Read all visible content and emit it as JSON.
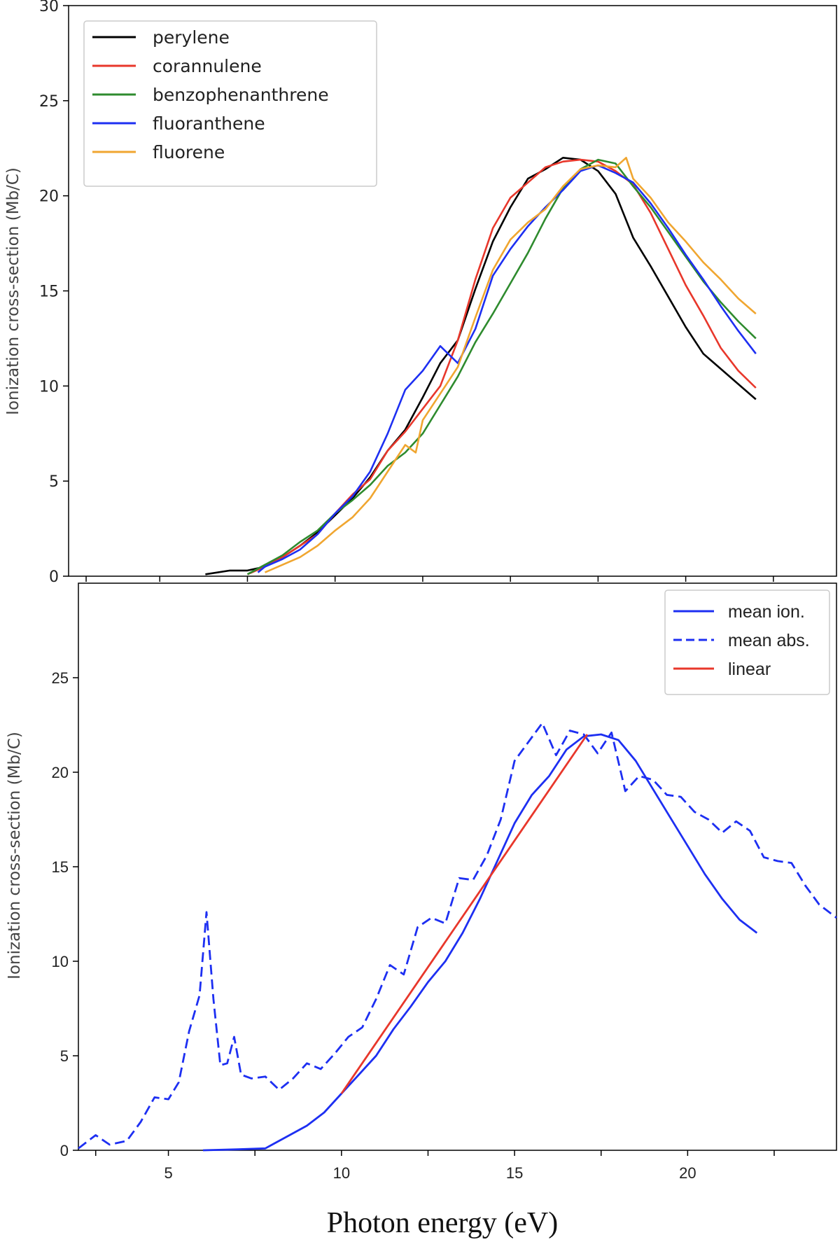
{
  "chart_data": [
    {
      "type": "line",
      "panel": "top",
      "title": "",
      "ylabel": "Ionization cross-section (Mb/C)",
      "xlabel": "",
      "xlim": [
        2.4,
        24.3
      ],
      "ylim": [
        0,
        30
      ],
      "yticks": [
        0,
        5,
        10,
        15,
        20,
        25,
        30
      ],
      "xticks": [
        2.9,
        5,
        7.5,
        10,
        12.5,
        15,
        17.5,
        20,
        22.5
      ],
      "legend_position": "top-left",
      "series": [
        {
          "name": "perylene",
          "color": "#000000",
          "x": [
            6.3,
            7.0,
            7.5,
            8.0,
            8.5,
            9.0,
            9.5,
            10.0,
            10.5,
            11.0,
            11.5,
            12.0,
            12.5,
            13.0,
            13.5,
            14.0,
            14.5,
            15.0,
            15.5,
            16.0,
            16.5,
            17.0,
            17.5,
            18.0,
            18.5,
            19.0,
            19.5,
            20.0,
            20.5,
            21.0,
            21.5,
            22.0
          ],
          "y": [
            0.1,
            0.3,
            0.3,
            0.5,
            1.0,
            1.6,
            2.3,
            3.2,
            4.1,
            5.2,
            6.6,
            7.7,
            9.4,
            11.2,
            12.4,
            15.1,
            17.6,
            19.4,
            20.9,
            21.4,
            22.0,
            21.9,
            21.3,
            20.1,
            17.8,
            16.3,
            14.7,
            13.1,
            11.7,
            10.9,
            10.1,
            9.3
          ]
        },
        {
          "name": "corannulene",
          "color": "#e8372b",
          "x": [
            7.5,
            8.0,
            8.5,
            9.0,
            9.5,
            10.0,
            10.5,
            11.0,
            11.5,
            12.0,
            12.5,
            13.0,
            13.5,
            14.0,
            14.5,
            15.0,
            15.5,
            16.0,
            16.5,
            17.0,
            17.5,
            18.0,
            18.5,
            19.0,
            19.5,
            20.0,
            20.5,
            21.0,
            21.5,
            22.0
          ],
          "y": [
            0.1,
            0.5,
            1.0,
            1.6,
            2.2,
            3.3,
            4.3,
            5.1,
            6.6,
            7.6,
            8.8,
            10.0,
            12.4,
            15.6,
            18.3,
            19.9,
            20.7,
            21.5,
            21.8,
            21.9,
            21.8,
            21.3,
            20.6,
            19.1,
            17.2,
            15.3,
            13.7,
            12.0,
            10.8,
            9.9
          ]
        },
        {
          "name": "benzophenanthrene",
          "color": "#2e8b2e",
          "x": [
            7.5,
            8.0,
            8.5,
            9.0,
            9.5,
            10.0,
            10.5,
            11.0,
            11.5,
            12.0,
            12.5,
            13.0,
            13.5,
            14.0,
            14.5,
            15.0,
            15.5,
            16.0,
            16.5,
            17.0,
            17.5,
            18.0,
            18.5,
            19.0,
            19.5,
            20.0,
            20.5,
            21.0,
            21.5,
            22.0
          ],
          "y": [
            0.1,
            0.6,
            1.1,
            1.8,
            2.4,
            3.3,
            4.0,
            4.8,
            5.8,
            6.5,
            7.5,
            9.0,
            10.5,
            12.3,
            13.8,
            15.4,
            17.0,
            18.8,
            20.4,
            21.4,
            21.9,
            21.7,
            20.5,
            19.4,
            18.1,
            16.8,
            15.5,
            14.4,
            13.4,
            12.5
          ]
        },
        {
          "name": "fluoranthene",
          "color": "#1d2ff2",
          "x": [
            7.8,
            8.0,
            8.5,
            9.0,
            9.5,
            10.0,
            10.5,
            11.0,
            11.5,
            12.0,
            12.5,
            13.0,
            13.5,
            14.0,
            14.5,
            15.0,
            15.5,
            16.0,
            16.5,
            17.0,
            17.5,
            18.0,
            18.5,
            19.0,
            19.5,
            20.0,
            20.5,
            21.0,
            21.5,
            22.0
          ],
          "y": [
            0.2,
            0.5,
            0.9,
            1.4,
            2.2,
            3.3,
            4.2,
            5.5,
            7.5,
            9.8,
            10.8,
            12.1,
            11.2,
            13.0,
            15.8,
            17.2,
            18.4,
            19.4,
            20.3,
            21.3,
            21.6,
            21.2,
            20.7,
            19.6,
            18.3,
            16.9,
            15.6,
            14.2,
            12.9,
            11.7
          ]
        },
        {
          "name": "fluorene",
          "color": "#f0a630",
          "x": [
            8.0,
            8.5,
            9.0,
            9.5,
            10.0,
            10.5,
            11.0,
            11.5,
            12.0,
            12.3,
            12.5,
            13.0,
            13.5,
            14.0,
            14.5,
            15.0,
            15.5,
            16.0,
            16.5,
            17.0,
            17.5,
            18.0,
            18.3,
            18.5,
            19.0,
            19.5,
            20.0,
            20.5,
            21.0,
            21.5,
            22.0
          ],
          "y": [
            0.2,
            0.6,
            1.0,
            1.6,
            2.4,
            3.1,
            4.1,
            5.5,
            6.9,
            6.5,
            8.2,
            9.6,
            11.0,
            13.6,
            16.1,
            17.7,
            18.6,
            19.3,
            20.5,
            21.4,
            21.6,
            21.5,
            22.0,
            20.9,
            19.9,
            18.6,
            17.6,
            16.5,
            15.6,
            14.6,
            13.8
          ]
        }
      ]
    },
    {
      "type": "line",
      "panel": "bottom",
      "title": "",
      "ylabel": "Ionization cross-section (Mb/C)",
      "xlabel": "Photon energy (eV)",
      "xlim": [
        2.4,
        24.3
      ],
      "ylim": [
        0,
        30
      ],
      "yticks": [
        0,
        5,
        10,
        15,
        20,
        25
      ],
      "xticks": [
        5,
        10,
        15,
        20
      ],
      "extra_ticks": [
        2.9,
        7.5,
        12.5,
        17.5,
        22.5
      ],
      "legend_position": "top-right",
      "series": [
        {
          "name": "mean ion.",
          "color": "#1d2ff2",
          "dash": "solid",
          "x": [
            6.0,
            7.0,
            7.8,
            8.0,
            8.5,
            9.0,
            9.5,
            10.0,
            10.5,
            11.0,
            11.5,
            12.0,
            12.5,
            13.0,
            13.5,
            14.0,
            14.5,
            15.0,
            15.5,
            16.0,
            16.5,
            17.0,
            17.5,
            18.0,
            18.5,
            19.0,
            19.5,
            20.0,
            20.5,
            21.0,
            21.5,
            22.0
          ],
          "y": [
            0.0,
            0.05,
            0.1,
            0.3,
            0.8,
            1.3,
            2.0,
            3.0,
            4.0,
            5.0,
            6.4,
            7.6,
            8.9,
            10.0,
            11.5,
            13.3,
            15.3,
            17.3,
            18.8,
            19.8,
            21.2,
            21.9,
            22.0,
            21.7,
            20.6,
            19.1,
            17.6,
            16.1,
            14.6,
            13.3,
            12.2,
            11.5
          ]
        },
        {
          "name": "mean abs.",
          "color": "#1d2ff2",
          "dash": "dashed",
          "x": [
            2.4,
            2.9,
            3.3,
            3.8,
            4.2,
            4.6,
            5.0,
            5.3,
            5.6,
            5.9,
            6.1,
            6.3,
            6.5,
            6.7,
            6.9,
            7.1,
            7.4,
            7.8,
            8.2,
            8.6,
            9.0,
            9.4,
            9.8,
            10.2,
            10.6,
            11.0,
            11.4,
            11.8,
            12.2,
            12.6,
            13.0,
            13.4,
            13.8,
            14.2,
            14.6,
            15.0,
            15.4,
            15.8,
            16.2,
            16.6,
            17.0,
            17.4,
            17.8,
            18.2,
            18.6,
            19.0,
            19.4,
            19.8,
            20.2,
            20.6,
            21.0,
            21.4,
            21.8,
            22.2,
            22.6,
            23.0,
            23.4,
            23.8,
            24.3
          ],
          "y": [
            0.1,
            0.8,
            0.3,
            0.5,
            1.5,
            2.8,
            2.7,
            3.6,
            6.3,
            8.2,
            12.6,
            8.0,
            4.5,
            4.6,
            6.0,
            4.0,
            3.8,
            3.9,
            3.2,
            3.8,
            4.6,
            4.3,
            5.1,
            6.0,
            6.5,
            8.0,
            9.8,
            9.3,
            11.8,
            12.3,
            12.0,
            14.4,
            14.3,
            15.6,
            17.5,
            20.6,
            21.6,
            22.6,
            20.9,
            22.2,
            22.0,
            21.0,
            22.1,
            19.0,
            19.8,
            19.6,
            18.8,
            18.7,
            17.9,
            17.5,
            16.8,
            17.4,
            16.9,
            15.5,
            15.3,
            15.2,
            14.0,
            13.0,
            12.3
          ]
        },
        {
          "name": "linear",
          "color": "#e8372b",
          "dash": "solid",
          "x": [
            10.0,
            17.1
          ],
          "y": [
            3.0,
            22.0
          ]
        }
      ]
    }
  ],
  "top_labels": {
    "yticks": [
      "0",
      "5",
      "10",
      "15",
      "20",
      "25",
      "30"
    ],
    "ylabel": "Ionization cross-section (Mb/C)"
  },
  "bottom_labels": {
    "yticks": [
      "0",
      "5",
      "10",
      "15",
      "20",
      "25"
    ],
    "xticks": [
      "5",
      "10",
      "15",
      "20"
    ],
    "ylabel": "Ionization cross-section (Mb/C)",
    "xlabel": "Photon energy (eV)"
  }
}
